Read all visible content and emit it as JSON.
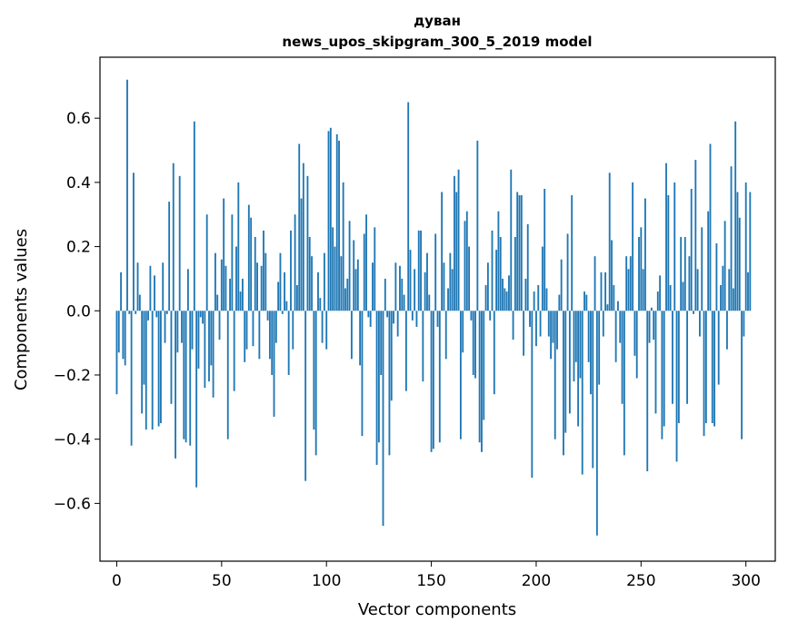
{
  "chart_data": {
    "type": "bar",
    "title_line1": "дуван",
    "title_line2": "news_upos_skipgram_300_5_2019 model",
    "xlabel": "Vector components",
    "ylabel": "Components values",
    "xlim": [
      -8,
      314
    ],
    "ylim": [
      -0.78,
      0.79
    ],
    "xticks": [
      0,
      50,
      100,
      150,
      200,
      250,
      300
    ],
    "xtick_labels": [
      "0",
      "50",
      "100",
      "150",
      "200",
      "250",
      "300"
    ],
    "yticks": [
      -0.6,
      -0.4,
      -0.2,
      0.0,
      0.2,
      0.4,
      0.6
    ],
    "ytick_labels": [
      "−0.6",
      "−0.4",
      "−0.2",
      "0.0",
      "0.2",
      "0.4",
      "0.6"
    ],
    "bar_color": "#1f77b4",
    "grid": false,
    "values": [
      -0.26,
      -0.13,
      0.12,
      -0.15,
      -0.17,
      0.72,
      -0.01,
      -0.42,
      0.43,
      -0.01,
      0.15,
      0.05,
      -0.32,
      -0.23,
      -0.37,
      -0.03,
      0.14,
      -0.37,
      0.11,
      -0.02,
      -0.36,
      -0.35,
      0.15,
      -0.1,
      -0.01,
      0.34,
      -0.29,
      0.46,
      -0.46,
      -0.13,
      0.42,
      -0.1,
      -0.4,
      -0.41,
      0.13,
      -0.42,
      -0.12,
      0.59,
      -0.55,
      -0.18,
      -0.02,
      -0.04,
      -0.24,
      0.3,
      -0.22,
      -0.17,
      -0.27,
      0.18,
      0.05,
      -0.09,
      0.16,
      0.35,
      0.14,
      -0.4,
      0.1,
      0.3,
      -0.25,
      0.2,
      0.4,
      0.06,
      0.1,
      -0.16,
      -0.12,
      0.33,
      0.29,
      -0.11,
      0.23,
      0.15,
      -0.15,
      0.14,
      0.25,
      0.18,
      -0.03,
      -0.15,
      -0.2,
      -0.33,
      -0.1,
      0.09,
      0.18,
      -0.01,
      0.12,
      0.03,
      -0.2,
      0.25,
      -0.12,
      0.3,
      0.08,
      0.52,
      0.35,
      0.46,
      -0.53,
      0.42,
      0.23,
      0.17,
      -0.37,
      -0.45,
      0.12,
      0.04,
      -0.1,
      0.18,
      -0.12,
      0.56,
      0.57,
      0.26,
      0.2,
      0.55,
      0.53,
      0.17,
      0.4,
      0.07,
      0.1,
      0.28,
      -0.15,
      0.22,
      0.13,
      0.16,
      -0.17,
      -0.39,
      0.24,
      0.3,
      -0.02,
      -0.05,
      0.15,
      0.26,
      -0.48,
      -0.41,
      -0.2,
      -0.67,
      0.1,
      -0.02,
      -0.45,
      -0.28,
      -0.04,
      0.15,
      -0.08,
      0.14,
      0.1,
      0.05,
      -0.25,
      0.65,
      0.19,
      -0.03,
      0.13,
      -0.05,
      0.25,
      0.25,
      -0.22,
      0.12,
      0.18,
      0.05,
      -0.44,
      -0.43,
      0.24,
      -0.05,
      -0.41,
      0.37,
      0.15,
      -0.15,
      0.07,
      0.18,
      0.13,
      0.42,
      0.37,
      0.44,
      -0.4,
      -0.13,
      0.28,
      0.31,
      0.2,
      -0.03,
      -0.2,
      -0.21,
      0.53,
      -0.41,
      -0.44,
      -0.34,
      0.08,
      0.15,
      -0.03,
      0.25,
      -0.26,
      0.19,
      0.31,
      0.23,
      0.1,
      0.07,
      0.06,
      0.11,
      0.44,
      -0.09,
      0.23,
      0.37,
      0.36,
      0.36,
      -0.14,
      0.1,
      0.27,
      -0.05,
      -0.52,
      0.06,
      -0.11,
      0.08,
      -0.08,
      0.2,
      0.38,
      0.07,
      -0.08,
      -0.15,
      -0.1,
      -0.4,
      -0.12,
      0.05,
      0.16,
      -0.45,
      -0.38,
      0.24,
      -0.32,
      0.36,
      -0.22,
      -0.16,
      -0.36,
      -0.21,
      -0.51,
      0.06,
      0.05,
      -0.16,
      -0.26,
      -0.49,
      0.17,
      -0.7,
      -0.23,
      0.12,
      -0.08,
      0.12,
      0.02,
      0.43,
      0.22,
      0.08,
      -0.16,
      0.03,
      -0.1,
      -0.29,
      -0.45,
      0.17,
      0.13,
      0.17,
      0.4,
      -0.14,
      -0.21,
      0.23,
      0.26,
      0.13,
      0.35,
      -0.5,
      -0.1,
      0.01,
      -0.09,
      -0.32,
      0.06,
      0.11,
      -0.4,
      -0.36,
      0.46,
      0.36,
      0.08,
      -0.29,
      0.4,
      -0.47,
      -0.35,
      0.23,
      0.09,
      0.23,
      -0.29,
      0.17,
      0.38,
      -0.01,
      0.47,
      0.13,
      -0.08,
      0.26,
      -0.39,
      -0.35,
      0.31,
      0.52,
      -0.35,
      -0.36,
      0.21,
      -0.23,
      0.08,
      0.14,
      0.28,
      -0.12,
      0.13,
      0.45,
      0.07,
      0.59,
      0.37,
      0.29,
      -0.4,
      -0.08,
      0.4,
      0.12,
      0.37
    ]
  }
}
